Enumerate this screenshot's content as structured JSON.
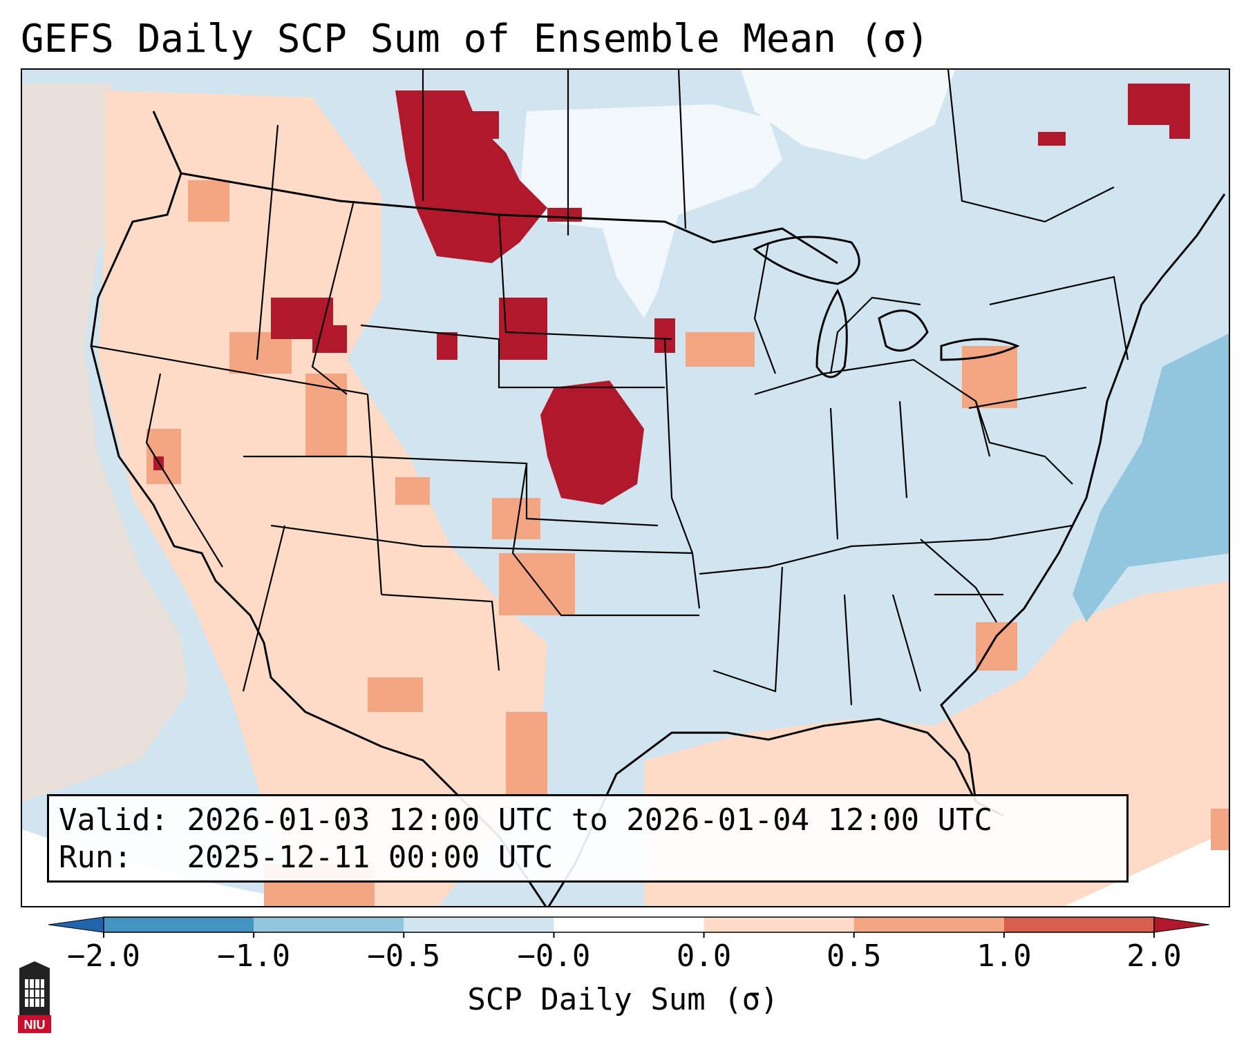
{
  "title": "GEFS Daily SCP Sum of Ensemble Mean (σ)",
  "info": {
    "valid_label": "Valid:",
    "valid_value": "2026-01-03 12:00 UTC to 2026-01-04 12:00 UTC",
    "run_label": "Run:",
    "run_value": "2025-12-11 00:00 UTC"
  },
  "colorbar": {
    "label": "SCP Daily Sum (σ)",
    "ticks": [
      "−2.0",
      "−1.0",
      "−0.5",
      "−0.0",
      "0.0",
      "0.5",
      "1.0",
      "2.0"
    ],
    "bins": [
      {
        "range": "< -2.0",
        "color": "#2166ac"
      },
      {
        "range": "-2.0 to -1.0",
        "color": "#4393c3"
      },
      {
        "range": "-1.0 to -0.5",
        "color": "#92c5de"
      },
      {
        "range": "-0.5 to -0.0",
        "color": "#d1e5f0"
      },
      {
        "range": "-0.0 to 0.0",
        "color": "#ffffff"
      },
      {
        "range": "0.0 to 0.5",
        "color": "#fddbc7"
      },
      {
        "range": "0.5 to 1.0",
        "color": "#f4a582"
      },
      {
        "range": "1.0 to 2.0",
        "color": "#d6604d"
      },
      {
        "range": "> 2.0",
        "color": "#b2182b"
      }
    ]
  },
  "colors": {
    "strong_positive": "#b2182b",
    "moderate_positive": "#f4a582",
    "weak_positive": "#fddbc7",
    "weak_negative": "#d1e5f0",
    "neutral": "#ffffff",
    "moderate_negative": "#92c5de",
    "border": "#000000"
  },
  "logo": {
    "text": "NIU",
    "icon": "university-tower-icon"
  }
}
